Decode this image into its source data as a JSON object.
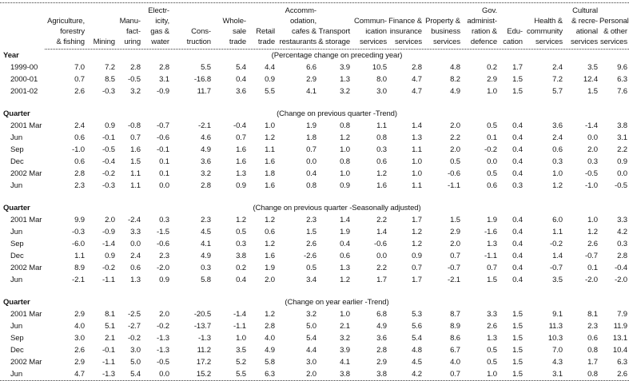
{
  "table": {
    "columns": [
      {
        "id": "agriculture-forestry-fishing",
        "header": "Agriculture,\nforestry\n& fishing"
      },
      {
        "id": "mining",
        "header": "Mining"
      },
      {
        "id": "manufacturing",
        "header": "Manu-\nfact-\nuring"
      },
      {
        "id": "electricity-gas-water",
        "header": "Electr-\nicity,\ngas &\nwater"
      },
      {
        "id": "construction",
        "header": "Cons-\ntruction"
      },
      {
        "id": "wholesale-trade",
        "header": "Whole-\nsale\ntrade"
      },
      {
        "id": "retail-trade",
        "header": "Retail\ntrade"
      },
      {
        "id": "accommodation-cafes-restaurants",
        "header": "Accomm-\nodation,\ncafes &\nrestaurants"
      },
      {
        "id": "transport-storage",
        "header": "Transport\n& storage"
      },
      {
        "id": "communication-services",
        "header": "Commun-\nication\nservices"
      },
      {
        "id": "finance-insurance-services",
        "header": "Finance &\ninsurance\nservices"
      },
      {
        "id": "property-business-services",
        "header": "Property &\nbusiness\nservices"
      },
      {
        "id": "gov-administration-defence",
        "header": "Gov.\nadminist-\nration &\ndefence"
      },
      {
        "id": "education",
        "header": "Edu-\ncation"
      },
      {
        "id": "health-community-services",
        "header": "Health &\ncommunity\nservices"
      },
      {
        "id": "cultural-recreational-services",
        "header": "Cultural\n& recre-\national\nservices"
      },
      {
        "id": "personal-other-services",
        "header": "Personal\n& other\nservices"
      }
    ],
    "sections": [
      {
        "label": "Year",
        "note": "(Percentage change on preceding year)",
        "rows": [
          {
            "label": "1999-00",
            "values": [
              "7.0",
              "7.2",
              "2.8",
              "2.8",
              "5.5",
              "5.4",
              "4.4",
              "6.6",
              "3.9",
              "10.5",
              "2.8",
              "4.8",
              "0.2",
              "1.7",
              "2.4",
              "3.5",
              "9.6"
            ]
          },
          {
            "label": "2000-01",
            "values": [
              "0.7",
              "8.5",
              "-0.5",
              "3.1",
              "-16.8",
              "0.4",
              "0.9",
              "2.9",
              "1.3",
              "8.0",
              "4.7",
              "8.2",
              "2.9",
              "1.5",
              "7.2",
              "12.4",
              "6.3"
            ]
          },
          {
            "label": "2001-02",
            "values": [
              "2.6",
              "-0.3",
              "3.2",
              "-0.9",
              "11.7",
              "3.6",
              "5.5",
              "4.1",
              "3.2",
              "3.0",
              "4.7",
              "4.9",
              "1.0",
              "1.5",
              "5.7",
              "1.5",
              "7.6"
            ]
          }
        ]
      },
      {
        "label": "Quarter",
        "note": "(Change on previous quarter -Trend)",
        "rows": [
          {
            "label": "2001 Mar",
            "values": [
              "2.4",
              "0.9",
              "-0.8",
              "-0.7",
              "-2.1",
              "-0.4",
              "1.0",
              "1.9",
              "0.8",
              "1.1",
              "1.4",
              "2.0",
              "0.5",
              "0.4",
              "3.6",
              "-1.4",
              "3.8"
            ]
          },
          {
            "label": "Jun",
            "values": [
              "0.6",
              "-0.1",
              "0.7",
              "-0.6",
              "4.6",
              "0.7",
              "1.2",
              "1.8",
              "1.2",
              "0.8",
              "1.3",
              "2.2",
              "0.1",
              "0.4",
              "2.4",
              "0.0",
              "3.1"
            ]
          },
          {
            "label": "Sep",
            "values": [
              "-1.0",
              "-0.5",
              "1.6",
              "-0.1",
              "4.9",
              "1.6",
              "1.1",
              "0.7",
              "1.0",
              "0.3",
              "1.1",
              "2.0",
              "-0.2",
              "0.4",
              "0.6",
              "2.0",
              "2.2"
            ]
          },
          {
            "label": "Dec",
            "values": [
              "0.6",
              "-0.4",
              "1.5",
              "0.1",
              "3.6",
              "1.6",
              "1.6",
              "0.0",
              "0.8",
              "0.6",
              "1.0",
              "0.5",
              "0.0",
              "0.4",
              "0.3",
              "0.3",
              "0.9"
            ]
          },
          {
            "label": "2002 Mar",
            "values": [
              "2.8",
              "-0.2",
              "1.1",
              "0.1",
              "3.2",
              "1.3",
              "1.8",
              "0.4",
              "1.0",
              "1.2",
              "1.0",
              "-0.6",
              "0.5",
              "0.4",
              "1.0",
              "-0.5",
              "0.0"
            ]
          },
          {
            "label": "Jun",
            "values": [
              "2.3",
              "-0.3",
              "1.1",
              "0.0",
              "2.8",
              "0.9",
              "1.6",
              "0.8",
              "0.9",
              "1.6",
              "1.1",
              "-1.1",
              "0.6",
              "0.3",
              "1.2",
              "-1.0",
              "-0.5"
            ]
          }
        ]
      },
      {
        "label": "Quarter",
        "note": "(Change on previous quarter -Seasonally adjusted)",
        "rows": [
          {
            "label": "2001 Mar",
            "values": [
              "9.9",
              "2.0",
              "-2.4",
              "0.3",
              "2.3",
              "1.2",
              "1.2",
              "2.3",
              "1.4",
              "2.2",
              "1.7",
              "1.5",
              "1.9",
              "0.4",
              "6.0",
              "1.0",
              "3.3"
            ]
          },
          {
            "label": "Jun",
            "values": [
              "-0.3",
              "-0.9",
              "3.3",
              "-1.5",
              "4.5",
              "0.5",
              "0.6",
              "1.5",
              "1.9",
              "1.4",
              "1.2",
              "2.9",
              "-1.6",
              "0.4",
              "1.1",
              "1.2",
              "4.2"
            ]
          },
          {
            "label": "Sep",
            "values": [
              "-6.0",
              "-1.4",
              "0.0",
              "-0.6",
              "4.1",
              "0.3",
              "1.2",
              "2.6",
              "0.4",
              "-0.6",
              "1.2",
              "2.0",
              "1.3",
              "0.4",
              "-0.2",
              "2.6",
              "0.3"
            ]
          },
          {
            "label": "Dec",
            "values": [
              "1.1",
              "0.9",
              "2.4",
              "2.3",
              "4.9",
              "3.8",
              "1.6",
              "-2.6",
              "0.6",
              "0.0",
              "0.9",
              "0.7",
              "-1.1",
              "0.4",
              "1.4",
              "-0.7",
              "2.8"
            ]
          },
          {
            "label": "2002 Mar",
            "values": [
              "8.9",
              "-0.2",
              "0.6",
              "-2.0",
              "0.3",
              "0.2",
              "1.9",
              "0.5",
              "1.3",
              "2.2",
              "0.7",
              "-0.7",
              "0.7",
              "0.4",
              "-0.7",
              "0.1",
              "-0.4"
            ]
          },
          {
            "label": "Jun",
            "values": [
              "-2.1",
              "-1.1",
              "1.3",
              "0.9",
              "5.8",
              "0.4",
              "2.0",
              "3.4",
              "1.2",
              "1.7",
              "1.7",
              "-2.1",
              "1.5",
              "0.4",
              "3.5",
              "-2.0",
              "-2.0"
            ]
          }
        ]
      },
      {
        "label": "Quarter",
        "note": "(Change on year earlier -Trend)",
        "rows": [
          {
            "label": "2001 Mar",
            "values": [
              "2.9",
              "8.1",
              "-2.5",
              "2.0",
              "-20.5",
              "-1.4",
              "1.2",
              "3.2",
              "1.0",
              "6.8",
              "5.3",
              "8.7",
              "3.3",
              "1.5",
              "9.1",
              "8.1",
              "7.9"
            ]
          },
          {
            "label": "Jun",
            "values": [
              "4.0",
              "5.1",
              "-2.7",
              "-0.2",
              "-13.7",
              "-1.1",
              "2.8",
              "5.0",
              "2.1",
              "4.9",
              "5.6",
              "8.9",
              "2.6",
              "1.5",
              "11.3",
              "2.3",
              "11.9"
            ]
          },
          {
            "label": "Sep",
            "values": [
              "3.0",
              "2.1",
              "-0.2",
              "-1.3",
              "-1.3",
              "1.0",
              "4.0",
              "5.4",
              "3.2",
              "3.6",
              "5.4",
              "8.6",
              "1.3",
              "1.5",
              "10.3",
              "0.6",
              "13.1"
            ]
          },
          {
            "label": "Dec",
            "values": [
              "2.6",
              "-0.1",
              "3.0",
              "-1.3",
              "11.2",
              "3.5",
              "4.9",
              "4.4",
              "3.9",
              "2.8",
              "4.8",
              "6.7",
              "0.5",
              "1.5",
              "7.0",
              "0.8",
              "10.4"
            ]
          },
          {
            "label": "2002 Mar",
            "values": [
              "2.9",
              "-1.1",
              "5.0",
              "-0.5",
              "17.2",
              "5.2",
              "5.8",
              "3.0",
              "4.1",
              "2.9",
              "4.5",
              "4.0",
              "0.5",
              "1.5",
              "4.3",
              "1.7",
              "6.3"
            ]
          },
          {
            "label": "Jun",
            "values": [
              "4.7",
              "-1.3",
              "5.4",
              "0.0",
              "15.2",
              "5.5",
              "6.3",
              "2.0",
              "3.8",
              "3.8",
              "4.2",
              "0.7",
              "1.0",
              "1.5",
              "3.1",
              "0.8",
              "2.6"
            ]
          }
        ]
      }
    ]
  }
}
